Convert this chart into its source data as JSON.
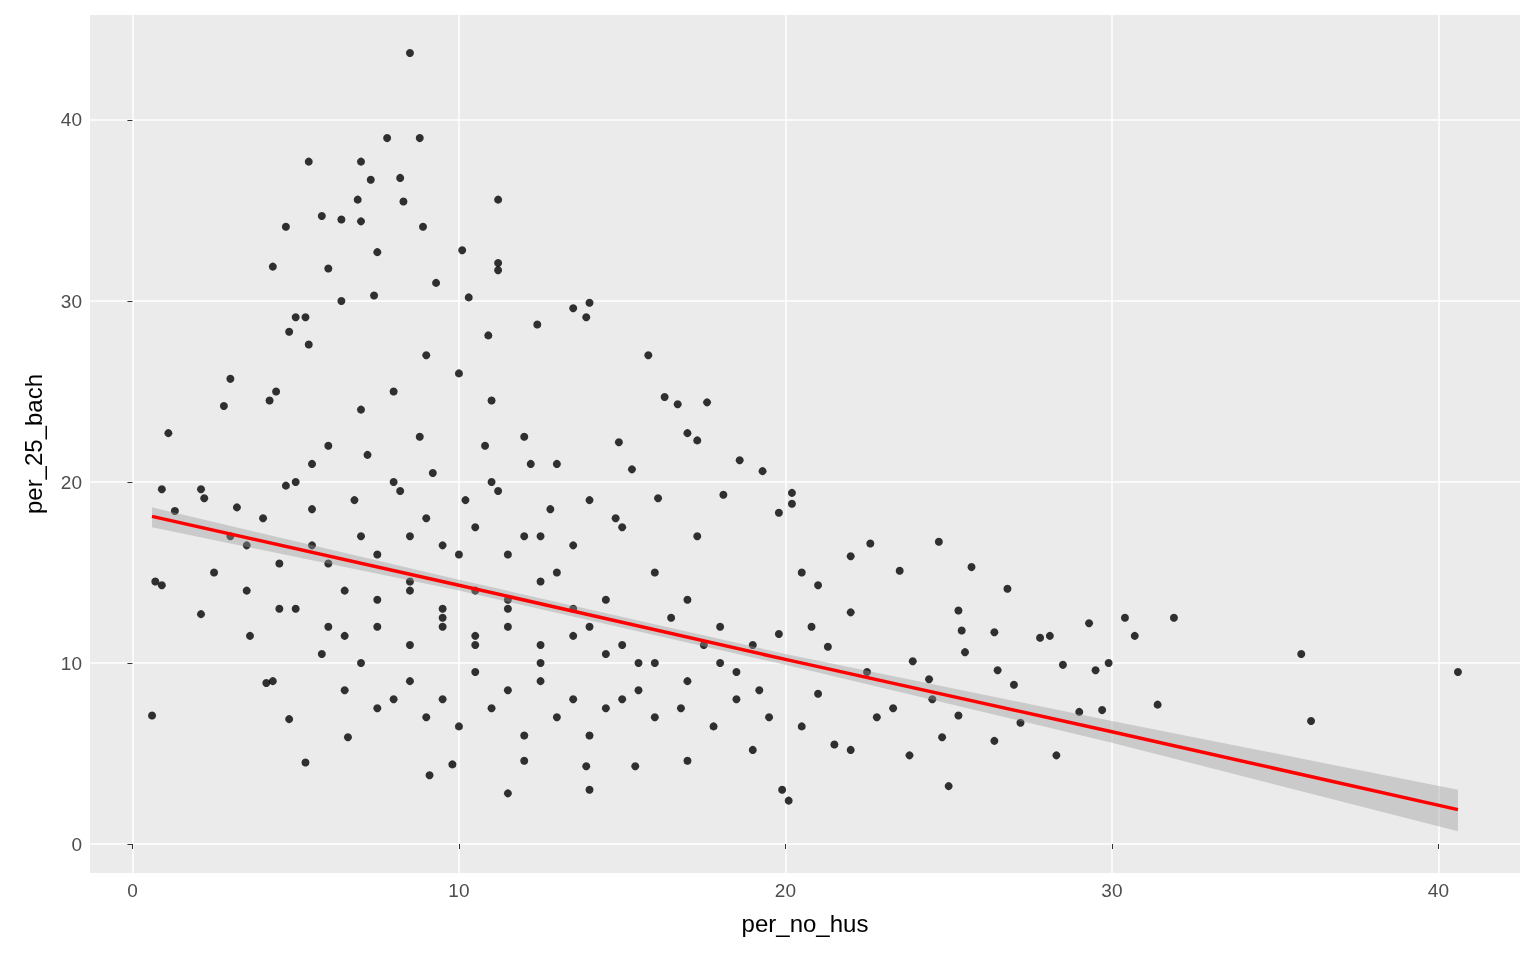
{
  "chart_data": {
    "type": "scatter",
    "xlabel": "per_no_hus",
    "ylabel": "per_25_bach",
    "xlim": [
      -1.3,
      42.5
    ],
    "ylim": [
      -1.6,
      45.8
    ],
    "xticks": [
      0,
      10,
      20,
      30,
      40
    ],
    "yticks": [
      0,
      10,
      20,
      30,
      40
    ],
    "grid": true,
    "series": [
      {
        "color": "#000000",
        "marker": "circle",
        "x": [
          6.5,
          7.5,
          8.5,
          9.5,
          10.5,
          11.5,
          12.5,
          13.5,
          14.5,
          15.5,
          6.5,
          7.5,
          8.5,
          9.5,
          10.5,
          11.5,
          12.5,
          13.5,
          14.5,
          15.5,
          6.5,
          7.5,
          8.5,
          9.5,
          10.5,
          11.5,
          12.5,
          13.5,
          14.5,
          5.5,
          7.5,
          8.5,
          9.5,
          10.5,
          11.5,
          12.5,
          13.5,
          4.5,
          5.5,
          6.8,
          8.2,
          9.2,
          10.2,
          11.2,
          12.8,
          3.5,
          4.5,
          5.8,
          7.2,
          8.8,
          10.8,
          12.2,
          14.8,
          16.5,
          17.5,
          18.5,
          16.8,
          17.8,
          19.2,
          8.5,
          7.8,
          8.8,
          5.4,
          7.0,
          8.2,
          7.3,
          11.2,
          6.9,
          8.3,
          5.8,
          4.7,
          6.4,
          8.9,
          7.0,
          10.1,
          11.2,
          4.3,
          6.0,
          7.5,
          11.2,
          5.3,
          5.0,
          6.4,
          7.4,
          9.3,
          10.3,
          12.4,
          13.5,
          14.0,
          13.9,
          15.8,
          10.9,
          4.8,
          5.4,
          3.0,
          2.8,
          4.4,
          4.2,
          16.3,
          16.7,
          17.6,
          17.0,
          17.3,
          18.6,
          19.3,
          20.2,
          20.2,
          19.8,
          22.6,
          24.7,
          23.5,
          25.7,
          26.8,
          22.0,
          21.0,
          20.5,
          1.1,
          0.9,
          1.3,
          0.6,
          0.7,
          0.9,
          2.1,
          2.1,
          3.6,
          4.1,
          4.3,
          4.8,
          5.3,
          6.6,
          9.1,
          11.5,
          14.0,
          19.9,
          20.1,
          25.0,
          28.3,
          23.8,
          24.8,
          22.0,
          19.0,
          17.0,
          13.9,
          12.0,
          9.8,
          15.4,
          25.3,
          25.4,
          26.4,
          25.5,
          27.8,
          28.1,
          29.3,
          30.4,
          30.7,
          31.9,
          29.5,
          29.9,
          28.5,
          26.5,
          27.0,
          27.2,
          29.0,
          29.7,
          31.4,
          35.8,
          36.1,
          40.6,
          26.4,
          25.3,
          24.5,
          23.9,
          24.4,
          22.5,
          21.0,
          22.8,
          23.3,
          21.5,
          20.5,
          19.5,
          18.5,
          18.0,
          17.0,
          16.0,
          15.0,
          14.0,
          13.0,
          12.0,
          11.0,
          10.0,
          9.0,
          8.0,
          7.0,
          6.0,
          5.0,
          4.0,
          3.0,
          2.5,
          3.5,
          5.0,
          6.0,
          7.0,
          8.0,
          9.0,
          10.0,
          11.0,
          12.0,
          13.0,
          14.0,
          15.0,
          16.0,
          17.0,
          18.0,
          19.0,
          9.5,
          10.5,
          11.5,
          12.5,
          8.5,
          9.0,
          10.0,
          11.0,
          13.0,
          14.0,
          15.0,
          16.0,
          8.0,
          7.0,
          6.0,
          12.0,
          2.2,
          3.2,
          4.7,
          5.5,
          14.9,
          15.3,
          16.1,
          18.1,
          17.3,
          19.8,
          21.3,
          20.8,
          22.0
        ],
        "values": [
          8.5,
          7.5,
          9.0,
          8.0,
          9.5,
          8.5,
          9.0,
          8.0,
          7.5,
          8.5,
          11.5,
          12.0,
          11.0,
          12.5,
          11.5,
          12.0,
          11.0,
          11.5,
          10.5,
          10.0,
          14.0,
          13.5,
          14.5,
          13.0,
          14.0,
          13.5,
          14.5,
          13.0,
          13.5,
          16.5,
          16.0,
          17.0,
          16.5,
          17.5,
          16.0,
          17.0,
          16.5,
          15.5,
          18.5,
          19.0,
          19.5,
          20.5,
          19.0,
          19.5,
          18.5,
          16.5,
          13.0,
          10.5,
          21.5,
          22.5,
          22.0,
          21.0,
          18.0,
          12.5,
          11.0,
          9.5,
          7.5,
          6.5,
          8.5,
          43.7,
          39,
          39,
          37.7,
          37.7,
          36.8,
          36.7,
          35.6,
          35.6,
          35.5,
          34.7,
          34.1,
          34.5,
          34.1,
          34.4,
          32.8,
          32.1,
          31.9,
          31.8,
          32.7,
          31.7,
          29.1,
          29.1,
          30,
          30.3,
          31,
          30.2,
          28.7,
          29.6,
          29.9,
          29.1,
          27,
          28.1,
          28.3,
          27.6,
          25.7,
          24.2,
          25,
          24.5,
          24.7,
          24.3,
          24.4,
          22.7,
          22.3,
          21.2,
          20.6,
          19.4,
          18.8,
          18.3,
          16.6,
          16.7,
          15.1,
          15.3,
          14.1,
          15.9,
          14.3,
          15.0,
          22.7,
          19.6,
          18.4,
          7.1,
          14.5,
          14.3,
          12.7,
          19.6,
          11.5,
          8.9,
          9.0,
          6.9,
          4.5,
          5.9,
          3.8,
          2.8,
          3.0,
          3.0,
          2.4,
          3.2,
          4.9,
          4.9,
          5.9,
          5.2,
          5.2,
          4.6,
          4.3,
          4.6,
          4.4,
          4.3,
          12.9,
          11.8,
          11.7,
          10.6,
          11.4,
          11.5,
          12.2,
          12.5,
          11.5,
          12.5,
          9.6,
          10.0,
          9.9,
          9.6,
          8.8,
          6.7,
          7.3,
          7.4,
          7.7,
          10.5,
          6.8,
          9.5,
          5.7,
          7.1,
          8.0,
          10.1,
          9.1,
          9.5,
          8.3,
          7.0,
          7.5,
          5.5,
          6.5,
          7.0,
          8.0,
          12.0,
          13.5,
          15.0,
          17.5,
          19.0,
          21.0,
          22.5,
          24.5,
          26.0,
          27.0,
          25.0,
          24.0,
          22.0,
          20.0,
          18.0,
          17.0,
          15.0,
          14.0,
          13.0,
          12.0,
          10.0,
          8.0,
          7.0,
          6.5,
          7.5,
          6.0,
          7.0,
          6.0,
          8.0,
          7.0,
          9.0,
          10.0,
          11.0,
          12.0,
          11.0,
          13.0,
          10.0,
          14.0,
          18.0,
          16.0,
          20.0,
          15.0,
          12.0,
          11.0,
          10.0,
          20.0,
          17.0,
          15.5,
          17.0,
          19.1,
          18.6,
          19.8,
          21.0,
          22.2,
          20.7,
          19.1,
          19.3,
          17.0,
          11.6,
          10.9,
          12.0,
          12.8
        ]
      },
      {
        "type": "line",
        "color": "#ff0000",
        "marker": "none",
        "x": [
          0.6,
          10,
          20,
          30,
          40.6
        ],
        "values": [
          18.1,
          14.3,
          10.2,
          6.2,
          1.9
        ],
        "lower": [
          17.5,
          14.0,
          9.9,
          5.6,
          0.7
        ],
        "upper": [
          18.6,
          14.6,
          10.5,
          6.8,
          3.0
        ]
      }
    ]
  }
}
